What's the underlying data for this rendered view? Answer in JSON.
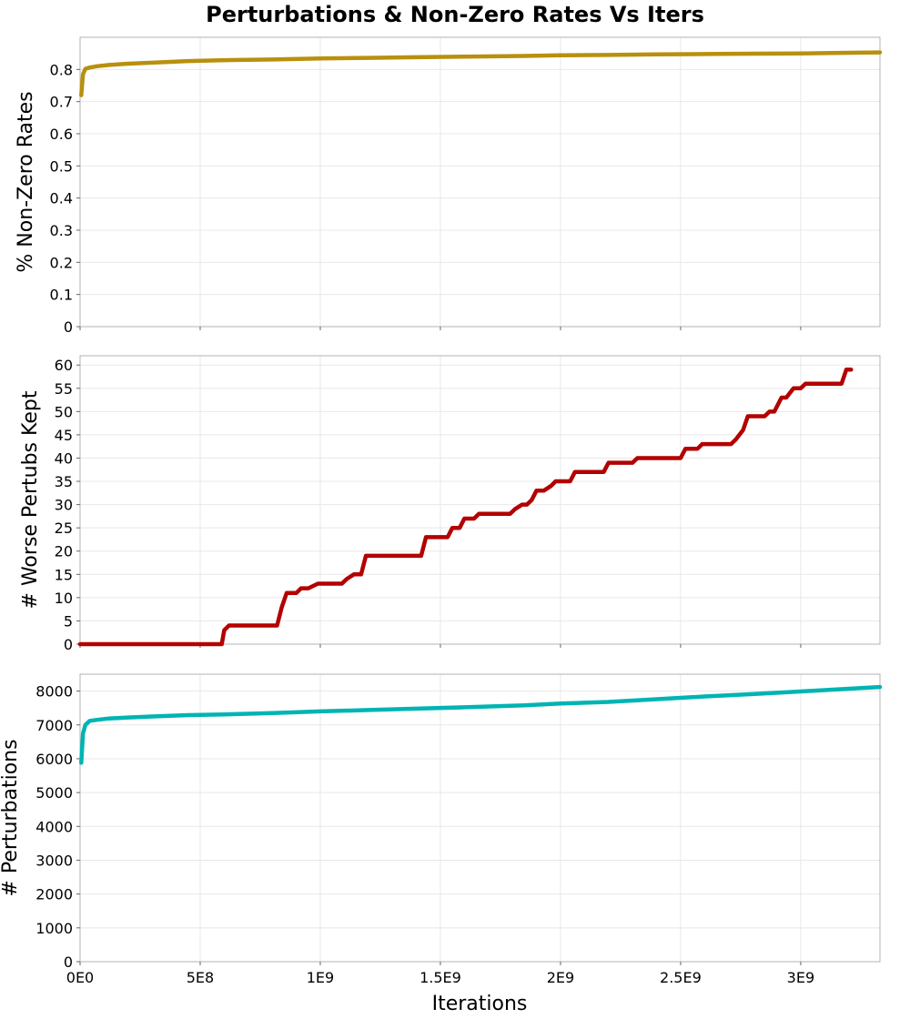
{
  "chart_data": {
    "type": "line",
    "title": "Perturbations & Non-Zero Rates Vs Iters",
    "xlabel": "Iterations",
    "xlim": [
      0,
      3330000000
    ],
    "xticks": [
      0,
      500000000,
      1000000000,
      1500000000,
      2000000000,
      2500000000,
      3000000000
    ],
    "xtick_labels": [
      "0E0",
      "5E8",
      "1E9",
      "1.5E9",
      "2E9",
      "2.5E9",
      "3E9"
    ],
    "grid": true,
    "panels": [
      {
        "ylabel": "% Non-Zero Rates",
        "ylim": [
          0,
          0.9
        ],
        "yticks": [
          0,
          0.1,
          0.2,
          0.3,
          0.4,
          0.5,
          0.6,
          0.7,
          0.8
        ],
        "ytick_labels": [
          "0",
          "0.1",
          "0.2",
          "0.3",
          "0.4",
          "0.5",
          "0.6",
          "0.7",
          "0.8"
        ],
        "color": "#b8900e",
        "x": [
          5000000,
          12000000,
          22000000,
          40000000,
          70000000,
          120000000,
          200000000,
          300000000,
          450000000,
          600000000,
          800000000,
          1000000000,
          1200000000,
          1400000000,
          1600000000,
          1850000000,
          2000000000,
          2200000000,
          2400000000,
          2600000000,
          2800000000,
          3000000000,
          3200000000,
          3330000000
        ],
        "y": [
          0.72,
          0.785,
          0.802,
          0.806,
          0.81,
          0.814,
          0.818,
          0.821,
          0.826,
          0.829,
          0.831,
          0.834,
          0.836,
          0.838,
          0.84,
          0.842,
          0.844,
          0.845,
          0.847,
          0.848,
          0.849,
          0.85,
          0.852,
          0.853
        ]
      },
      {
        "ylabel": "# Worse Pertubs Kept",
        "ylim": [
          0,
          62
        ],
        "yticks": [
          0,
          5,
          10,
          15,
          20,
          25,
          30,
          35,
          40,
          45,
          50,
          55,
          60
        ],
        "ytick_labels": [
          "0",
          "5",
          "10",
          "15",
          "20",
          "25",
          "30",
          "35",
          "40",
          "45",
          "50",
          "55",
          "60"
        ],
        "color": "#b30000",
        "x": [
          0,
          590000000,
          600000000,
          620000000,
          820000000,
          840000000,
          860000000,
          900000000,
          920000000,
          950000000,
          990000000,
          1020000000,
          1090000000,
          1110000000,
          1140000000,
          1170000000,
          1190000000,
          1420000000,
          1440000000,
          1530000000,
          1550000000,
          1580000000,
          1600000000,
          1640000000,
          1660000000,
          1790000000,
          1810000000,
          1840000000,
          1860000000,
          1880000000,
          1900000000,
          1930000000,
          1960000000,
          1980000000,
          2040000000,
          2060000000,
          2180000000,
          2200000000,
          2300000000,
          2320000000,
          2500000000,
          2520000000,
          2570000000,
          2590000000,
          2710000000,
          2730000000,
          2760000000,
          2780000000,
          2850000000,
          2870000000,
          2890000000,
          2920000000,
          2940000000,
          2970000000,
          3000000000,
          3020000000,
          3170000000,
          3190000000,
          3210000000
        ],
        "y": [
          0,
          0,
          3,
          4,
          4,
          8,
          11,
          11,
          12,
          12,
          13,
          13,
          13,
          14,
          15,
          15,
          19,
          19,
          23,
          23,
          25,
          25,
          27,
          27,
          28,
          28,
          29,
          30,
          30,
          31,
          33,
          33,
          34,
          35,
          35,
          37,
          37,
          39,
          39,
          40,
          40,
          42,
          42,
          43,
          43,
          44,
          46,
          49,
          49,
          50,
          50,
          53,
          53,
          55,
          55,
          56,
          56,
          59,
          59
        ]
      },
      {
        "ylabel": "# Perturbations",
        "ylim": [
          0,
          8500
        ],
        "yticks": [
          0,
          1000,
          2000,
          3000,
          4000,
          5000,
          6000,
          7000,
          8000
        ],
        "ytick_labels": [
          "0",
          "1000",
          "2000",
          "3000",
          "4000",
          "5000",
          "6000",
          "7000",
          "8000"
        ],
        "color": "#00b4b4",
        "x": [
          5000000,
          12000000,
          22000000,
          40000000,
          70000000,
          120000000,
          200000000,
          300000000,
          450000000,
          600000000,
          800000000,
          1000000000,
          1200000000,
          1400000000,
          1600000000,
          1850000000,
          2000000000,
          2200000000,
          2400000000,
          2600000000,
          2800000000,
          3000000000,
          3200000000,
          3330000000
        ],
        "y": [
          5880,
          6750,
          7000,
          7120,
          7150,
          7190,
          7220,
          7250,
          7290,
          7310,
          7350,
          7400,
          7440,
          7480,
          7520,
          7580,
          7630,
          7680,
          7760,
          7840,
          7910,
          7990,
          8070,
          8120
        ]
      }
    ]
  }
}
